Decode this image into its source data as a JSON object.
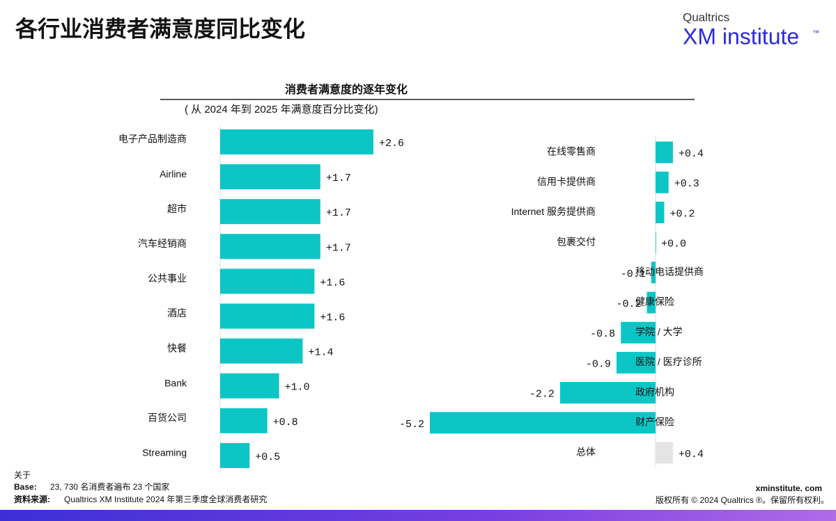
{
  "page": {
    "title": "各行业消费者满意度同比变化",
    "logo_brand": "Qualtrics",
    "logo_name": "XM institute",
    "logo_mark": "™"
  },
  "chart_data": [
    {
      "type": "bar",
      "orientation": "horizontal",
      "title": "消费者满意度的逐年变化",
      "subtitle": "( 从 2024 年到 2025 年满意度百分比变化)",
      "categories": [
        "电子产品制造商",
        "Airline",
        "超市",
        "汽车经销商",
        "公共事业",
        "酒店",
        "快餐",
        "Bank",
        "百货公司",
        "Streaming"
      ],
      "values": [
        2.6,
        1.7,
        1.7,
        1.7,
        1.6,
        1.6,
        1.4,
        1.0,
        0.8,
        0.5
      ],
      "value_labels": [
        "+2.6",
        "+1.7",
        "+1.7",
        "+1.7",
        "+1.6",
        "+1.6",
        "+1.4",
        "+1.0",
        "+0.8",
        "+0.5"
      ],
      "color": "#0cc6c6"
    },
    {
      "type": "bar",
      "orientation": "horizontal",
      "categories": [
        "在线零售商",
        "信用卡提供商",
        "Internet 服务提供商",
        "包裹交付",
        "移动电话提供商",
        "健康保险",
        "学院 / 大学",
        "医院 / 医疗诊所",
        "政府机构",
        "财产保险",
        "总体"
      ],
      "values": [
        0.4,
        0.3,
        0.2,
        0.0,
        -0.1,
        -0.2,
        -0.8,
        -0.9,
        -2.2,
        -5.2,
        0.4
      ],
      "value_labels": [
        "+0.4",
        "+0.3",
        "+0.2",
        "+0.0",
        "-0.1",
        "-0.2",
        "-0.8",
        "-0.9",
        "-2.2",
        "-5.2",
        "+0.4"
      ],
      "colors": [
        "#0cc6c6",
        "#0cc6c6",
        "#0cc6c6",
        "#0cc6c6",
        "#0cc6c6",
        "#0cc6c6",
        "#0cc6c6",
        "#0cc6c6",
        "#0cc6c6",
        "#0cc6c6",
        "#e4e4e4"
      ]
    }
  ],
  "footer": {
    "about": "关于",
    "base_label": "Base:",
    "base_text": "23, 730 名消费者遍布 23 个国家",
    "source_label": "资料来源:",
    "source_text": "Qualtrics XM Institute 2024 年第三季度全球消费者研究",
    "site": "xminstitute. com",
    "copyright": "版权所有 © 2024 Qualtrics ®。保留所有权利。"
  }
}
